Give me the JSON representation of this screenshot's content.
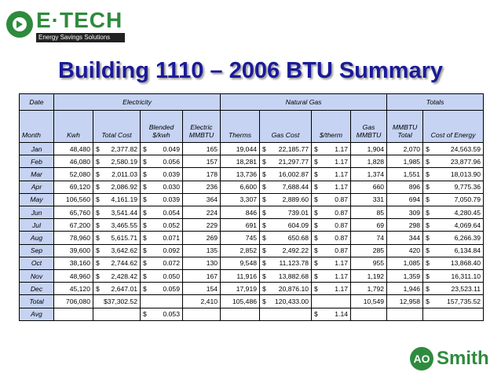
{
  "logo": {
    "name": "E·TECH",
    "tagline": "Energy Savings Solutions",
    "color": "#2e8b3e"
  },
  "title": "Building 1110 – 2006 BTU Summary",
  "title_color": "#1a1a99",
  "header_bg": "#c6d3f2",
  "table": {
    "group_headers": {
      "date": "Date",
      "electricity": "Electricity",
      "natural_gas": "Natural Gas",
      "totals": "Totals"
    },
    "columns": [
      "Month",
      "Kwh",
      "Total Cost",
      "Blended $/kwh",
      "Electric MMBTU",
      "Therms",
      "Gas Cost",
      "$/therm",
      "Gas MMBTU",
      "MMBTU Total",
      "Cost of Energy"
    ],
    "rows": [
      [
        "Jan",
        "48,480",
        "$ 2,377.82",
        "$ 0.049",
        "165",
        "19,044",
        "$ 22,185.77",
        "$ 1.17",
        "1,904",
        "2,070",
        "$ 24,563.59"
      ],
      [
        "Feb",
        "46,080",
        "$ 2,580.19",
        "$ 0.056",
        "157",
        "18,281",
        "$ 21,297.77",
        "$ 1.17",
        "1,828",
        "1,985",
        "$ 23,877.96"
      ],
      [
        "Mar",
        "52,080",
        "$ 2,011.03",
        "$ 0.039",
        "178",
        "13,736",
        "$ 16,002.87",
        "$ 1.17",
        "1,374",
        "1,551",
        "$ 18,013.90"
      ],
      [
        "Apr",
        "69,120",
        "$ 2,086.92",
        "$ 0.030",
        "236",
        "6,600",
        "$ 7,688.44",
        "$ 1.17",
        "660",
        "896",
        "$ 9,775.36"
      ],
      [
        "May",
        "106,560",
        "$ 4,161.19",
        "$ 0.039",
        "364",
        "3,307",
        "$ 2,889.60",
        "$ 0.87",
        "331",
        "694",
        "$ 7,050.79"
      ],
      [
        "Jun",
        "65,760",
        "$ 3,541.44",
        "$ 0.054",
        "224",
        "846",
        "$ 739.01",
        "$ 0.87",
        "85",
        "309",
        "$ 4,280.45"
      ],
      [
        "Jul",
        "67,200",
        "$ 3,465.55",
        "$ 0.052",
        "229",
        "691",
        "$ 604.09",
        "$ 0.87",
        "69",
        "298",
        "$ 4,069.64"
      ],
      [
        "Aug",
        "78,960",
        "$ 5,615.71",
        "$ 0.071",
        "269",
        "745",
        "$ 650.68",
        "$ 0.87",
        "74",
        "344",
        "$ 6,266.39"
      ],
      [
        "Sep",
        "39,600",
        "$ 3,642.62",
        "$ 0.092",
        "135",
        "2,852",
        "$ 2,492.22",
        "$ 0.87",
        "285",
        "420",
        "$ 6,134.84"
      ],
      [
        "Oct",
        "38,160",
        "$ 2,744.62",
        "$ 0.072",
        "130",
        "9,548",
        "$ 11,123.78",
        "$ 1.17",
        "955",
        "1,085",
        "$ 13,868.40"
      ],
      [
        "Nov",
        "48,960",
        "$ 2,428.42",
        "$ 0.050",
        "167",
        "11,916",
        "$ 13,882.68",
        "$ 1.17",
        "1,192",
        "1,359",
        "$ 16,311.10"
      ],
      [
        "Dec",
        "45,120",
        "$ 2,647.01",
        "$ 0.059",
        "154",
        "17,919",
        "$ 20,876.10",
        "$ 1.17",
        "1,792",
        "1,946",
        "$ 23,523.11"
      ],
      [
        "Total",
        "706,080",
        "$37,302.52",
        "",
        "2,410",
        "105,486",
        "$ 120,433.00",
        "",
        "10,549",
        "12,958",
        "$ 157,735.52"
      ],
      [
        "Avg",
        "",
        "",
        "$ 0.053",
        "",
        "",
        "",
        "$ 1.14",
        "",
        "",
        ""
      ]
    ]
  },
  "footer_logo": {
    "mark": "AO",
    "name": "Smith",
    "color": "#2e8b3e"
  }
}
